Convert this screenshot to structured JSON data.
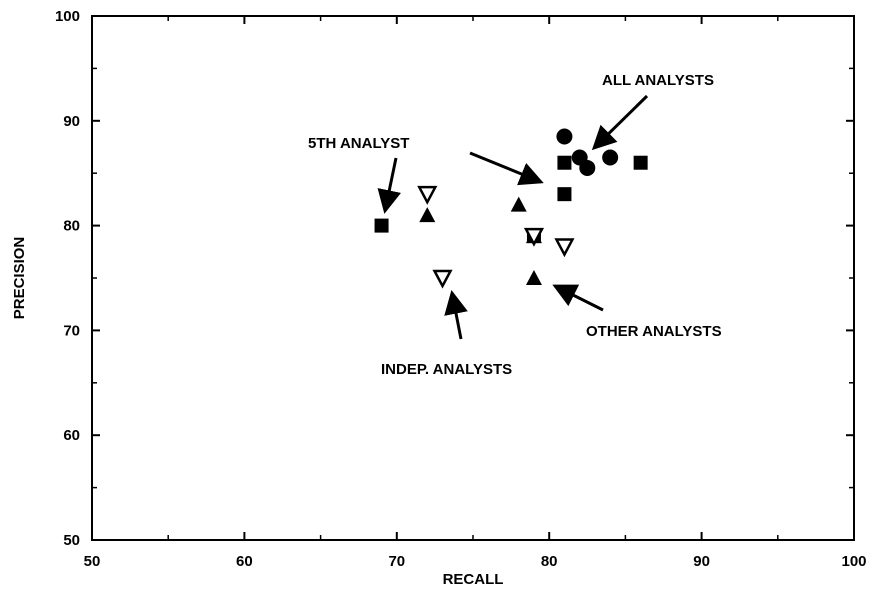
{
  "chart_data": {
    "type": "scatter",
    "xlabel": "RECALL",
    "ylabel": "PRECISION",
    "xlim": [
      50,
      100
    ],
    "ylim": [
      50,
      100
    ],
    "xticks": [
      50,
      60,
      70,
      80,
      90,
      100
    ],
    "yticks": [
      50,
      60,
      70,
      80,
      90,
      100
    ],
    "grid": false,
    "series": [
      {
        "marker": "circle",
        "points": [
          [
            81,
            88.5
          ],
          [
            82,
            86.5
          ],
          [
            82.5,
            85.5
          ],
          [
            84,
            86.5
          ]
        ]
      },
      {
        "marker": "square",
        "points": [
          [
            69,
            80
          ],
          [
            81,
            86
          ],
          [
            81,
            83
          ],
          [
            86,
            86
          ],
          [
            79,
            79
          ]
        ]
      },
      {
        "marker": "triangle-up",
        "points": [
          [
            72,
            81
          ],
          [
            78,
            82
          ],
          [
            79,
            79
          ],
          [
            79,
            75
          ]
        ]
      },
      {
        "marker": "triangle-down-open",
        "points": [
          [
            72,
            83
          ],
          [
            73,
            75
          ],
          [
            79,
            79
          ],
          [
            81,
            78
          ]
        ]
      }
    ],
    "annotations": [
      {
        "text": "ALL ANALYSTS"
      },
      {
        "text": "5TH ANALYST"
      },
      {
        "text": "OTHER ANALYSTS"
      },
      {
        "text": "INDEP. ANALYSTS"
      }
    ]
  }
}
